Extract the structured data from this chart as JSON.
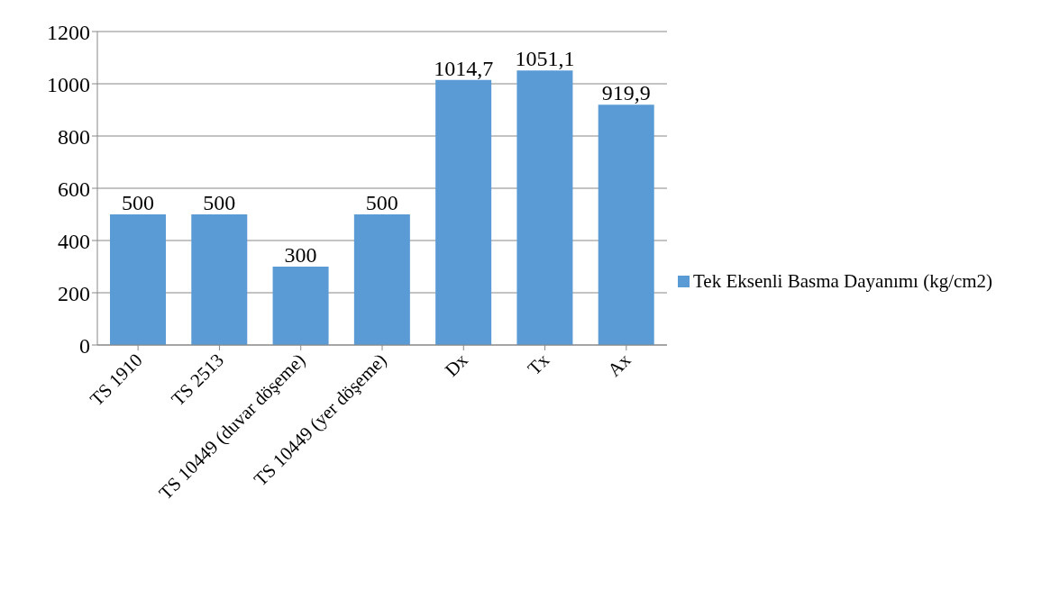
{
  "chart_data": {
    "type": "bar",
    "categories": [
      "TS 1910",
      "TS 2513",
      "TS 10449 (duvar döşeme)",
      "TS 10449 (yer döşeme)",
      "Dx",
      "Tx",
      "Ax"
    ],
    "series": [
      {
        "name": "Tek Eksenli Basma Dayanımı (kg/cm2)",
        "color": "#5b9bd5",
        "values": [
          500,
          500,
          300,
          500,
          1014.7,
          1051.1,
          919.9
        ],
        "value_labels": [
          "500",
          "500",
          "300",
          "500",
          "1014,7",
          "1051,1",
          "919,9"
        ]
      }
    ],
    "ylim": [
      0,
      1200
    ],
    "yticks": [
      0,
      200,
      400,
      600,
      800,
      1000,
      1200
    ],
    "grid": "y",
    "legend": "right"
  }
}
